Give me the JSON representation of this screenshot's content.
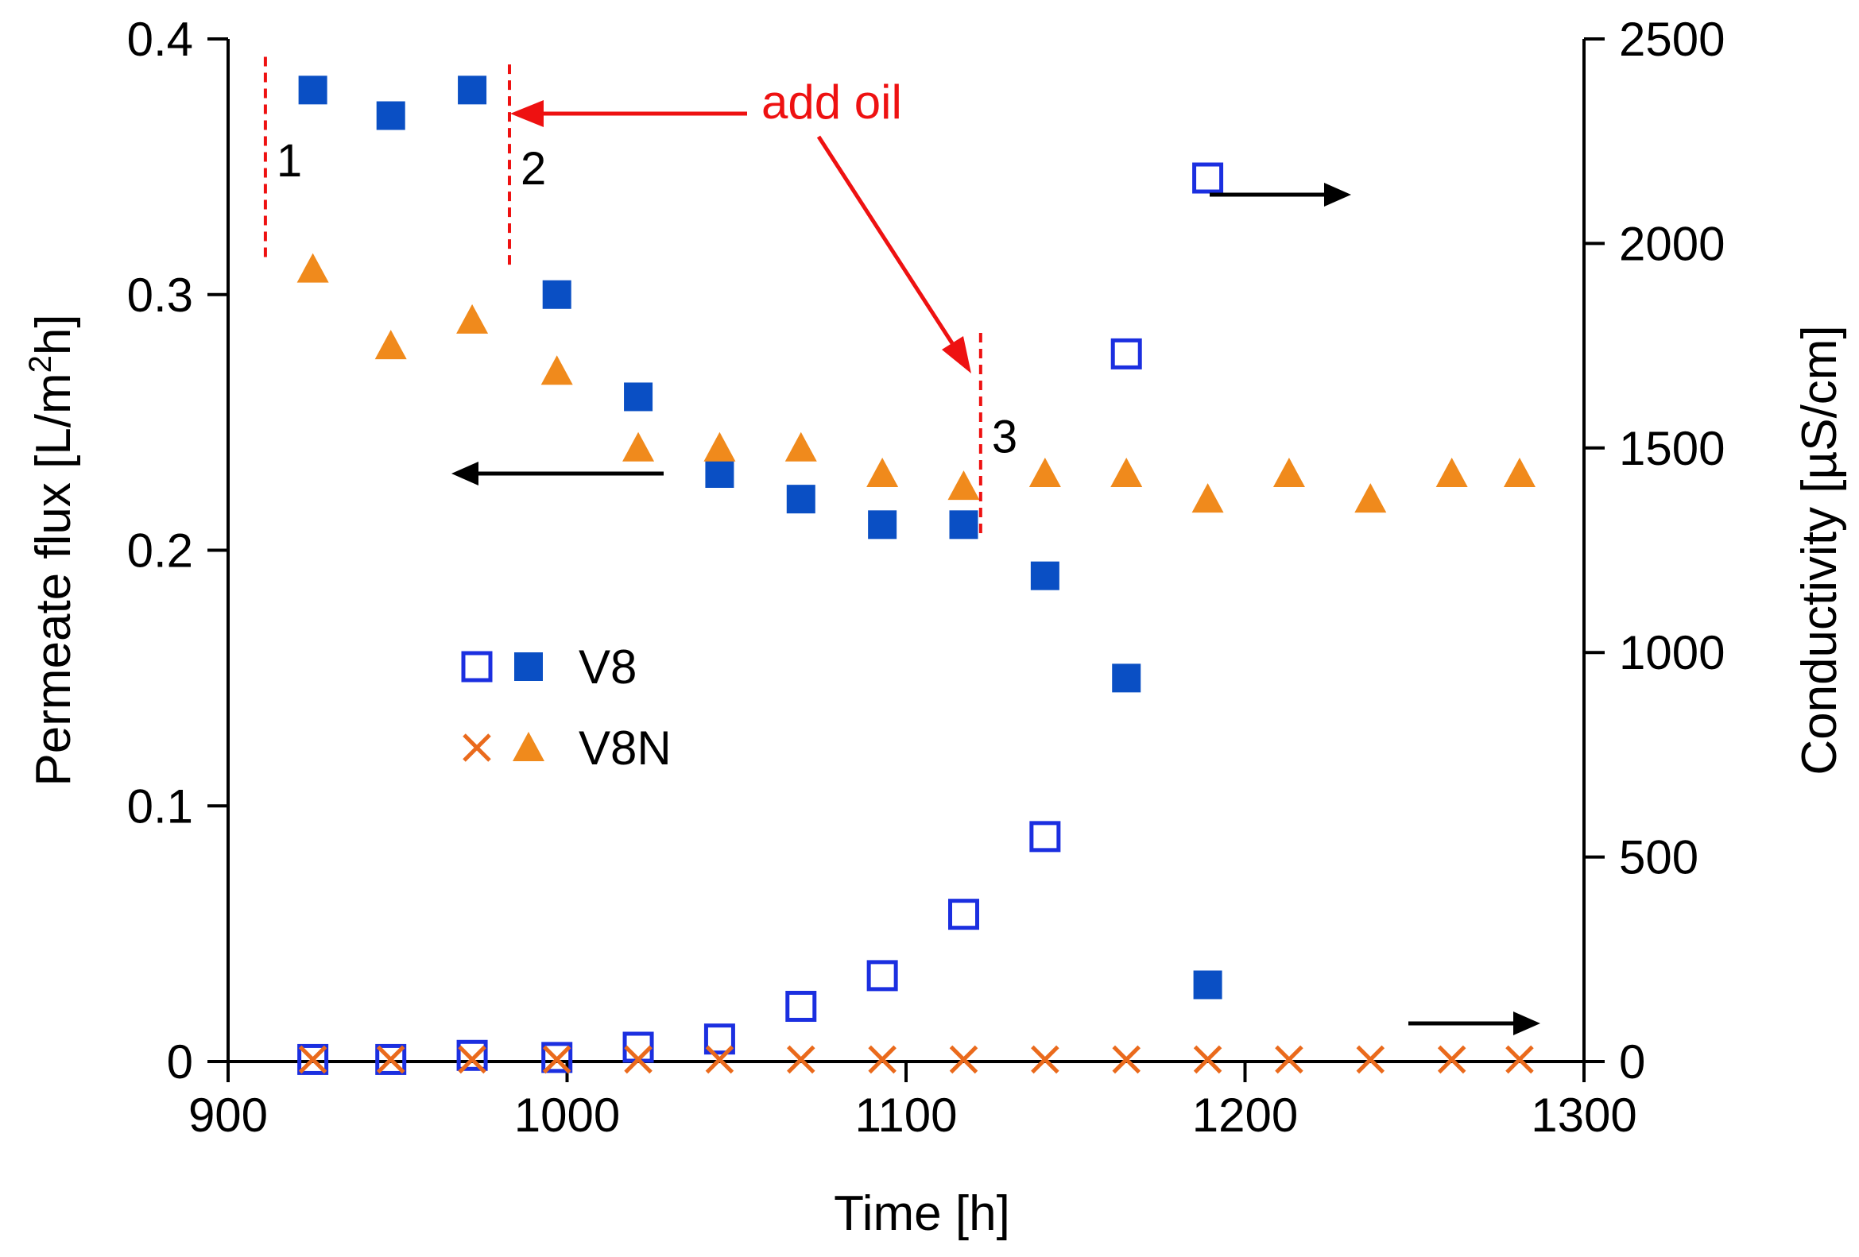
{
  "chart_data": {
    "type": "scatter",
    "xlabel": "Time [h]",
    "ylabel_left_main": "Permeate flux [L/m",
    "ylabel_left_sup": "2",
    "ylabel_left_tail": "h]",
    "ylabel_right": "Conductivity [µS/cm]",
    "xlim": [
      900,
      1300
    ],
    "ylim_left": [
      0,
      0.4
    ],
    "ylim_right": [
      0,
      2500
    ],
    "xticks": [
      900,
      1000,
      1100,
      1200,
      1300
    ],
    "xtick_labels": [
      "900",
      "1000",
      "1100",
      "1200",
      "1300"
    ],
    "yticks_left": [
      0,
      0.1,
      0.2,
      0.3,
      0.4
    ],
    "ytick_labels_left": [
      "0",
      "0.1",
      "0.2",
      "0.3",
      "0.4"
    ],
    "yticks_right": [
      0,
      500,
      1000,
      1500,
      2000,
      2500
    ],
    "ytick_labels_right": [
      "0",
      "500",
      "1000",
      "1500",
      "2000",
      "2500"
    ],
    "grid": false,
    "legend_position": "center-left",
    "legend": [
      {
        "label": "V8",
        "open_marker": "open-square",
        "filled_marker": "filled-square"
      },
      {
        "label": "V8N",
        "open_marker": "x",
        "filled_marker": "filled-triangle"
      }
    ],
    "series": [
      {
        "legend": "V8",
        "axis": "left",
        "marker": "filled-square",
        "color": "#0a4fc4",
        "points": [
          [
            925,
            0.38
          ],
          [
            948,
            0.37
          ],
          [
            972,
            0.38
          ],
          [
            997,
            0.3
          ],
          [
            1021,
            0.26
          ],
          [
            1045,
            0.23
          ],
          [
            1069,
            0.22
          ],
          [
            1093,
            0.21
          ],
          [
            1117,
            0.21
          ],
          [
            1141,
            0.19
          ],
          [
            1165,
            0.15
          ],
          [
            1189,
            0.03
          ]
        ]
      },
      {
        "legend": "V8N",
        "axis": "left",
        "marker": "filled-triangle",
        "color": "#f08a1c",
        "points": [
          [
            925,
            0.31
          ],
          [
            948,
            0.28
          ],
          [
            972,
            0.29
          ],
          [
            997,
            0.27
          ],
          [
            1021,
            0.24
          ],
          [
            1045,
            0.24
          ],
          [
            1069,
            0.24
          ],
          [
            1093,
            0.23
          ],
          [
            1117,
            0.225
          ],
          [
            1141,
            0.23
          ],
          [
            1165,
            0.23
          ],
          [
            1189,
            0.22
          ],
          [
            1213,
            0.23
          ],
          [
            1237,
            0.22
          ],
          [
            1261,
            0.23
          ],
          [
            1281,
            0.23
          ]
        ]
      },
      {
        "legend": "V8",
        "axis": "right",
        "marker": "open-square",
        "color": "#1b2fe0",
        "points": [
          [
            925,
            5
          ],
          [
            948,
            5
          ],
          [
            972,
            15
          ],
          [
            997,
            10
          ],
          [
            1021,
            35
          ],
          [
            1045,
            55
          ],
          [
            1069,
            135
          ],
          [
            1093,
            210
          ],
          [
            1117,
            360
          ],
          [
            1141,
            550
          ],
          [
            1165,
            1730
          ],
          [
            1189,
            2160
          ]
        ]
      },
      {
        "legend": "V8N",
        "axis": "right",
        "marker": "x",
        "color": "#ea6a1c",
        "points": [
          [
            925,
            5
          ],
          [
            948,
            5
          ],
          [
            972,
            5
          ],
          [
            997,
            5
          ],
          [
            1021,
            5
          ],
          [
            1045,
            5
          ],
          [
            1069,
            5
          ],
          [
            1093,
            5
          ],
          [
            1117,
            5
          ],
          [
            1141,
            5
          ],
          [
            1165,
            5
          ],
          [
            1189,
            5
          ],
          [
            1213,
            5
          ],
          [
            1237,
            5
          ],
          [
            1261,
            5
          ],
          [
            1281,
            5
          ]
        ]
      }
    ],
    "event_markers": [
      {
        "label": "1",
        "x": 911,
        "y_from": 0.313,
        "y_to": 0.393
      },
      {
        "label": "2",
        "x": 983,
        "y_from": 0.31,
        "y_to": 0.39
      },
      {
        "label": "3",
        "x": 1122,
        "y_from": 0.205,
        "y_to": 0.285
      }
    ],
    "annotation": {
      "text": "add oil",
      "color": "#ee1111"
    },
    "axis_arrow_color": "#000000"
  }
}
